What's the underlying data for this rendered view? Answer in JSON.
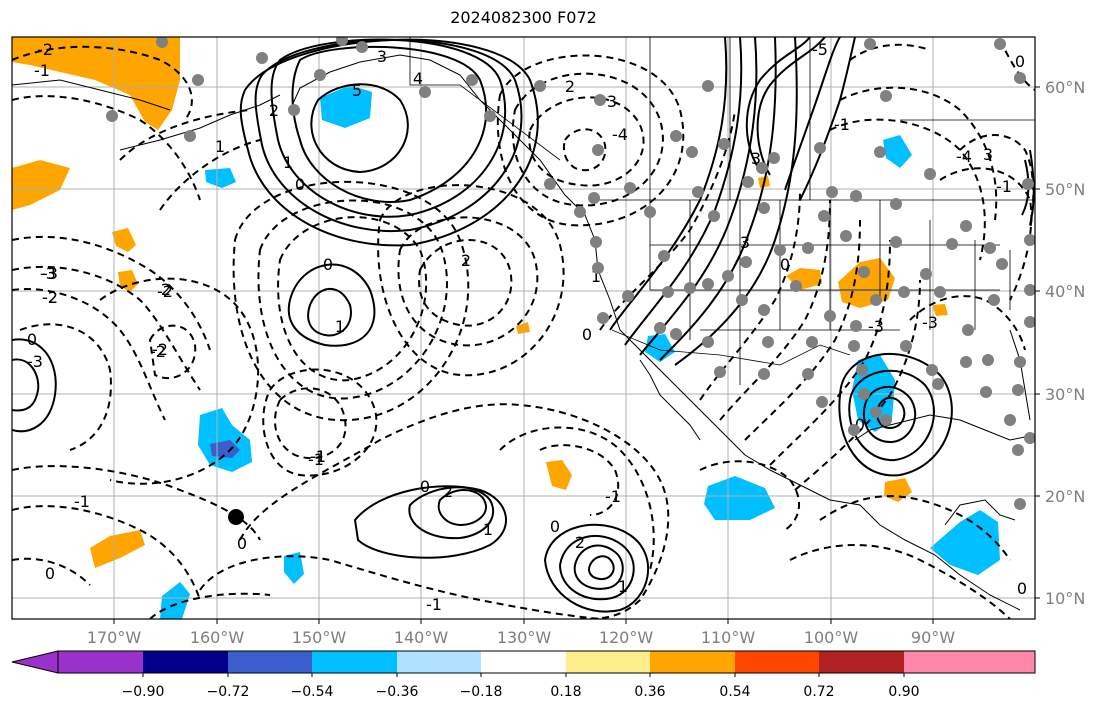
{
  "title": "2024082300 F072",
  "lat_labels": [
    "60°N",
    "50°N",
    "40°N",
    "30°N",
    "20°N",
    "10°N"
  ],
  "lon_labels": [
    "170°W",
    "160°W",
    "150°W",
    "140°W",
    "130°W",
    "120°W",
    "110°W",
    "100°W",
    "90°W"
  ],
  "colorbar": {
    "colors": [
      "#9932cc",
      "#00008b",
      "#3a5fcd",
      "#00bfff",
      "#b0e2ff",
      "#ffffff",
      "#ffec8b",
      "#ffa500",
      "#ff4500",
      "#b22222",
      "#ff88aa",
      "#ff88aa"
    ],
    "tick_labels": [
      "−0.90",
      "−0.72",
      "−0.54",
      "−0.36",
      "−0.18",
      "0.18",
      "0.36",
      "0.54",
      "0.72",
      "0.90"
    ]
  },
  "contour_labels": [
    "3",
    "4",
    "5",
    "2",
    "1",
    "0",
    "-1",
    "-2",
    "-3",
    "3",
    "2",
    "1",
    "0",
    "-1",
    "-2",
    "-3",
    "-4",
    "-5",
    "1",
    "0",
    "2",
    "3",
    "-1",
    "-2",
    "0",
    "1",
    "2",
    "2",
    "0",
    "-1",
    "-1",
    "-2",
    "0",
    "1",
    "-1",
    "0",
    "1",
    "2",
    "0",
    "3",
    "-3",
    "-4",
    "3",
    "-3",
    "-1",
    "0",
    "0",
    "-1",
    "-2",
    "-3",
    "-2",
    "0",
    "-1",
    "0"
  ],
  "map": {
    "grid_color": "#b0b0b0",
    "land_color": "#000000",
    "station_color": "#808080",
    "highlight_marker_color": "#000000"
  }
}
